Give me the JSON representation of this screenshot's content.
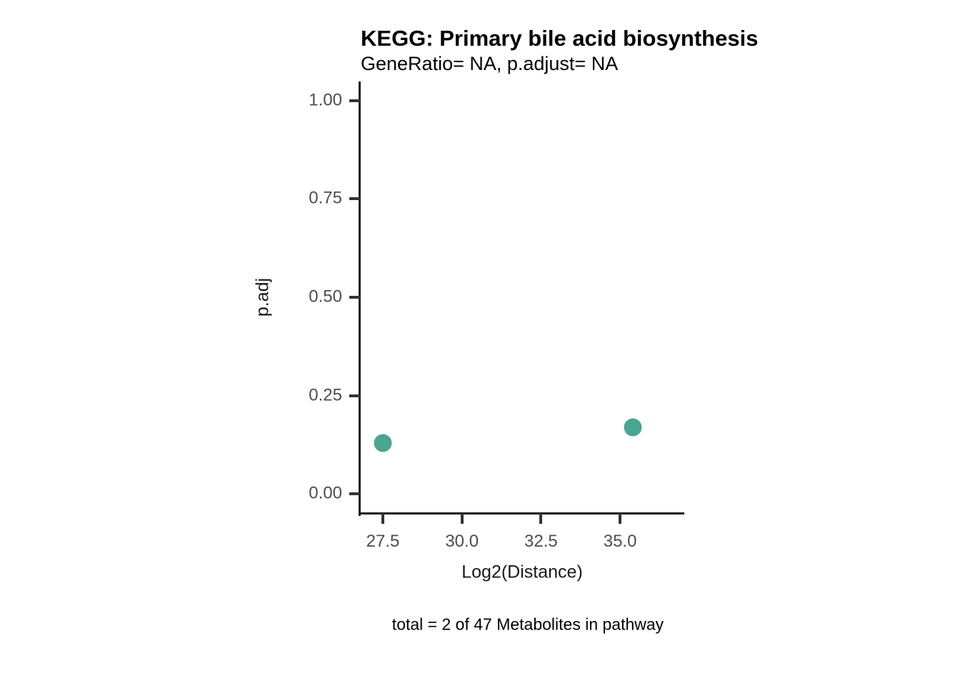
{
  "chart_data": {
    "type": "scatter",
    "title": "KEGG: Primary bile acid biosynthesis",
    "subtitle": "GeneRatio= NA, p.adjust= NA",
    "xlabel": "Log2(Distance)",
    "ylabel": "p.adj",
    "caption": "total = 2 of 47 Metabolites in pathway",
    "points": [
      {
        "x": 27.5,
        "y": 0.13
      },
      {
        "x": 35.4,
        "y": 0.17
      }
    ],
    "xticks": [
      27.5,
      30.0,
      32.5,
      35.0
    ],
    "xtick_labels": [
      "27.5",
      "30.0",
      "32.5",
      "35.0"
    ],
    "yticks": [
      0.0,
      0.25,
      0.5,
      0.75,
      1.0
    ],
    "ytick_labels": [
      "0.00",
      "0.25",
      "0.50",
      "0.75",
      "1.00"
    ],
    "xlim": [
      26.8,
      37.03
    ],
    "ylim": [
      -0.049,
      1.049
    ],
    "grid": false,
    "legend": "none",
    "point_color": "#4AA592",
    "axis_color": "#1a1a1a",
    "tick_color": "#333333",
    "tick_label_color": "#4d4d4d"
  }
}
